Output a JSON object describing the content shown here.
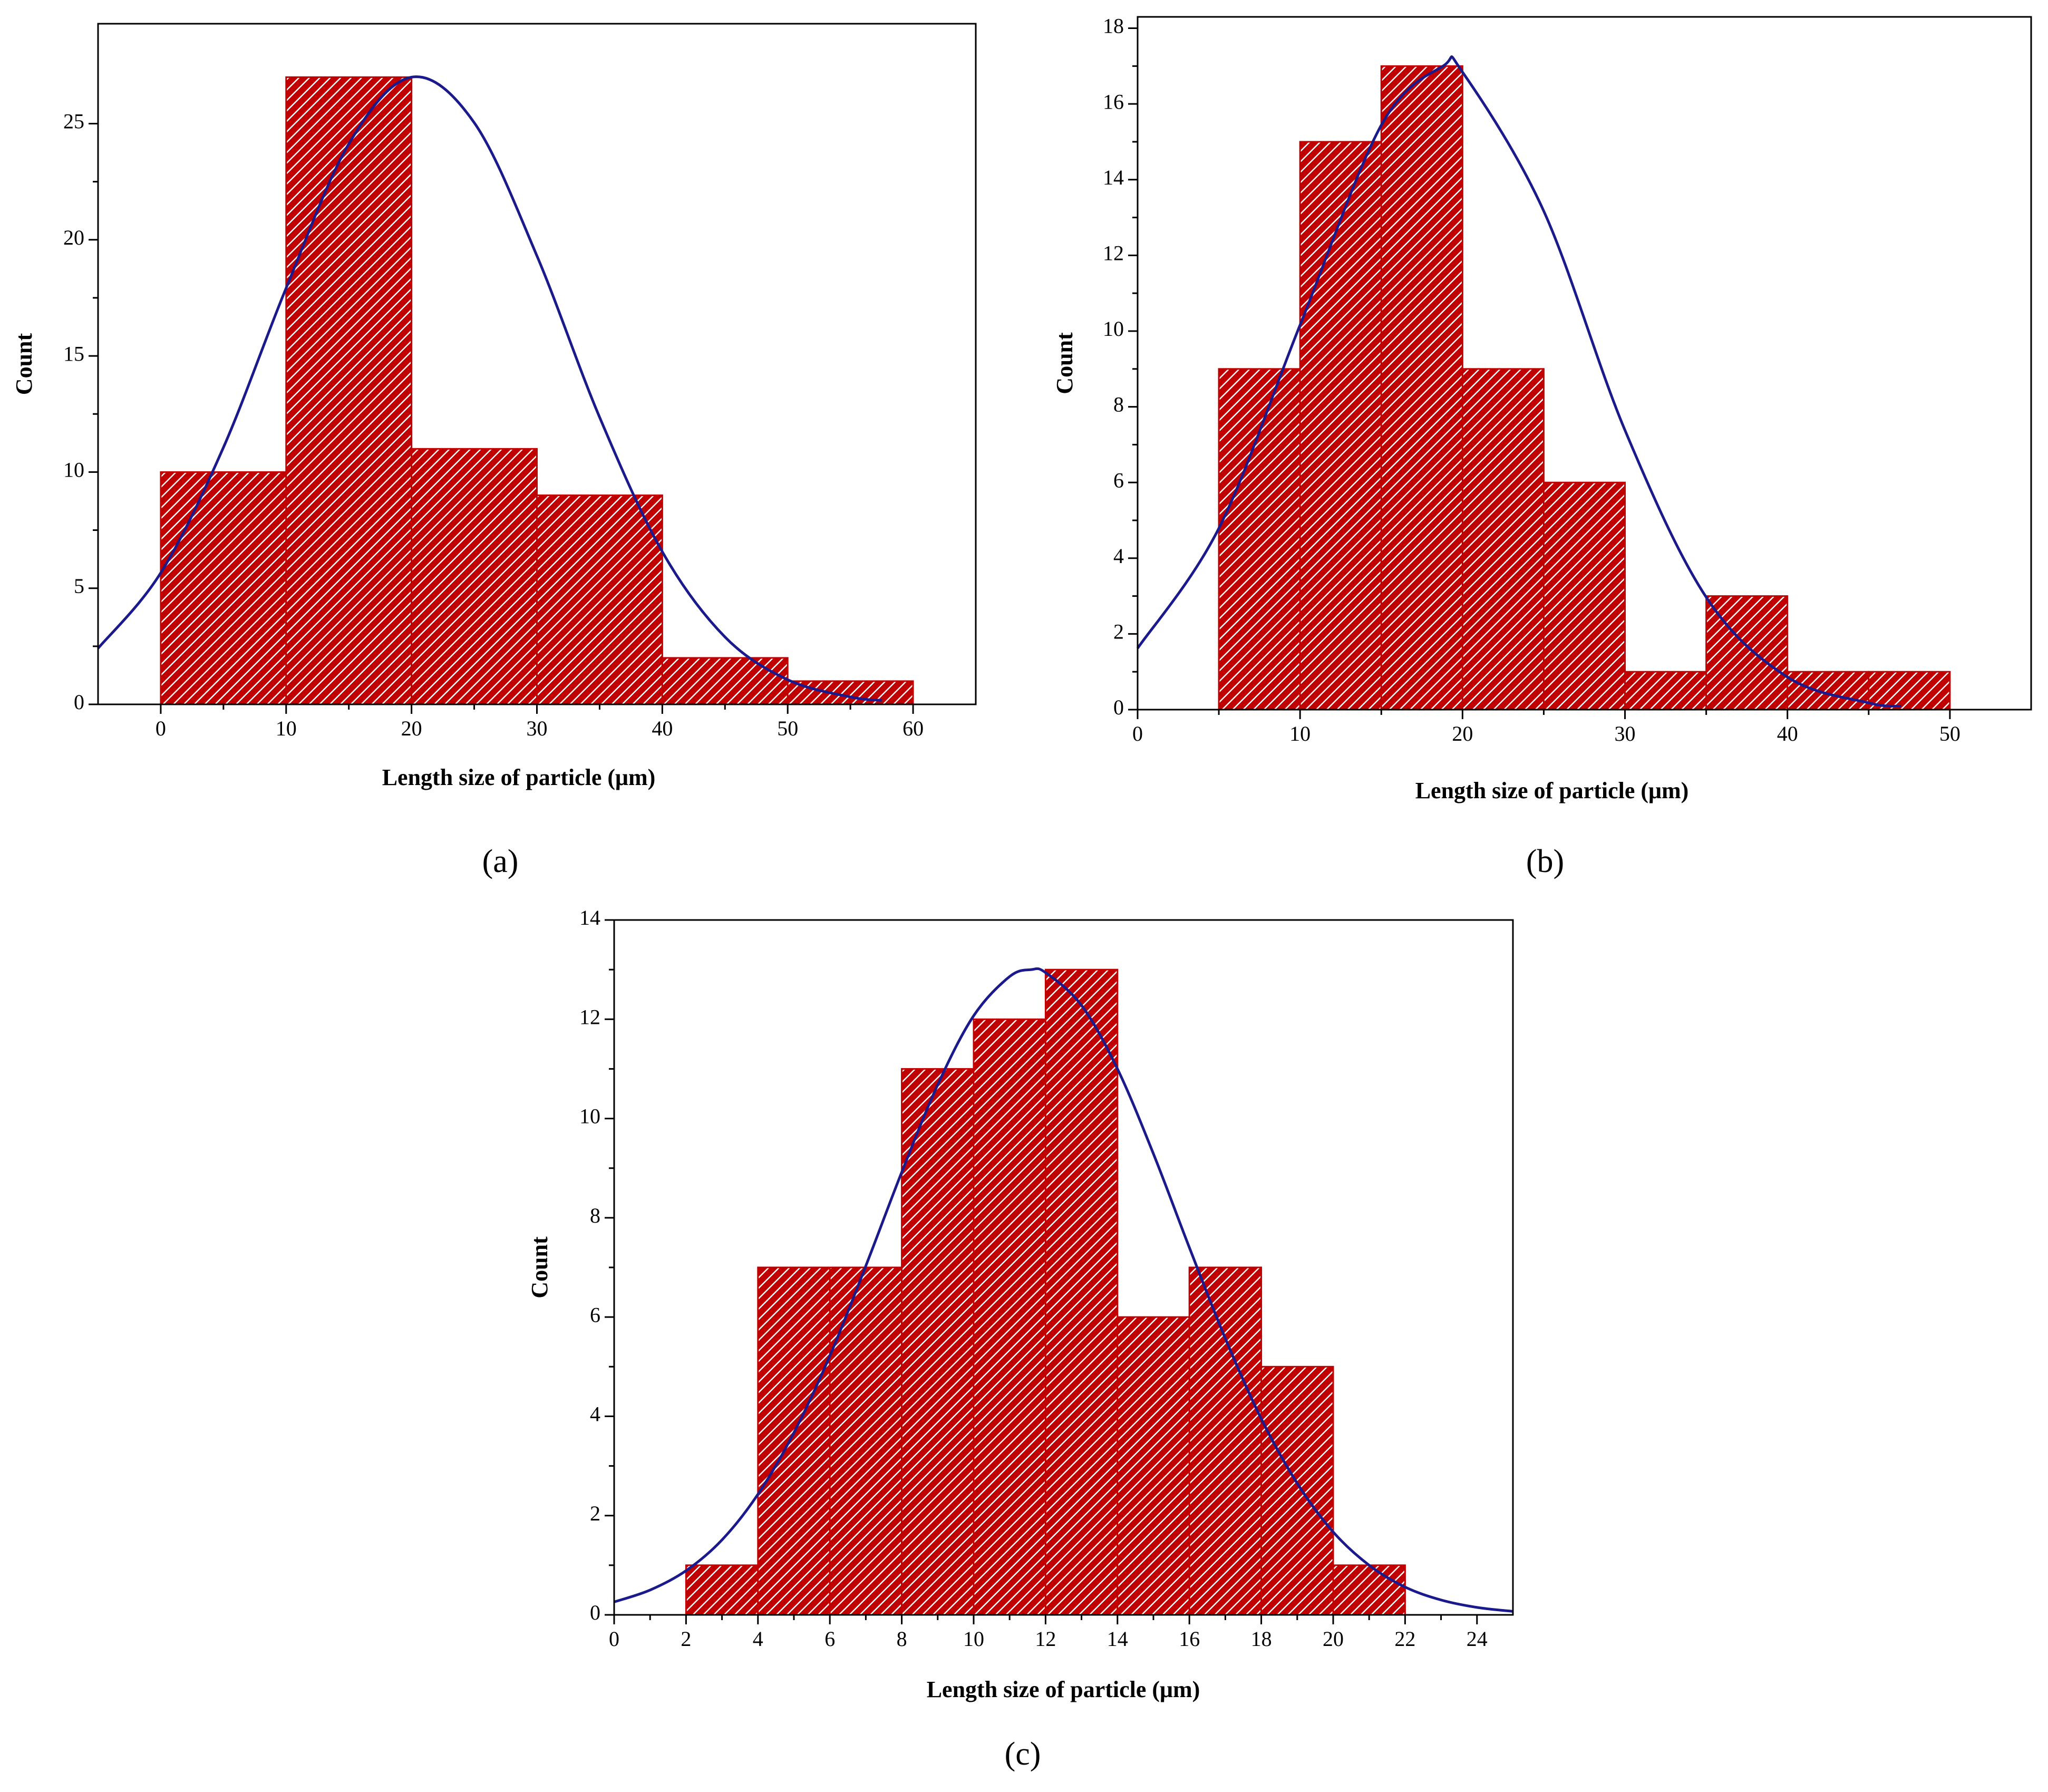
{
  "chart_data": [
    {
      "type": "histogram",
      "panel_label": "(a)",
      "xlabel": "Length size of particle (μm)",
      "ylabel": "Count",
      "bins": [
        0,
        10,
        20,
        30,
        40,
        50,
        60
      ],
      "values": [
        10,
        27,
        11,
        9,
        2,
        1
      ],
      "color": "#c00000",
      "curve": {
        "color": "#1a1a8c",
        "x": [
          -5,
          0,
          5,
          10,
          15,
          20,
          25,
          30,
          35,
          40,
          45,
          50,
          55,
          57.5
        ],
        "values": [
          2.41,
          5.66,
          11.06,
          17.92,
          24.13,
          27,
          25.04,
          19.31,
          12.36,
          6.57,
          2.9,
          1.06,
          0.32,
          0.17
        ]
      },
      "xlim": [
        -5,
        65
      ],
      "ylim": [
        0,
        29.3
      ],
      "xticks": [
        0,
        10,
        20,
        30,
        40,
        50,
        60
      ],
      "yticks": [
        0,
        5,
        10,
        15,
        20,
        25
      ]
    },
    {
      "type": "histogram",
      "panel_label": "(b)",
      "xlabel": "Length size of particle (μm)",
      "ylabel": "Count",
      "bins": [
        5,
        10,
        15,
        20,
        25,
        30,
        35,
        40,
        45,
        50
      ],
      "values": [
        9,
        15,
        17,
        9,
        6,
        1,
        3,
        1,
        1
      ],
      "color": "#c00000",
      "curve": {
        "color": "#1a1a8c",
        "x": [
          0,
          5,
          10,
          15,
          18.8,
          20,
          25,
          30,
          35,
          40,
          45,
          47
        ],
        "values": [
          1.62,
          4.79,
          10.16,
          15.44,
          17,
          16.84,
          13.17,
          7.38,
          2.97,
          0.86,
          0.18,
          0.09
        ]
      },
      "xlim": [
        0,
        55
      ],
      "ylim": [
        0,
        18.3
      ],
      "xticks": [
        0,
        10,
        20,
        30,
        40,
        50
      ],
      "yticks": [
        0,
        2,
        4,
        6,
        8,
        10,
        12,
        14,
        16,
        18
      ]
    },
    {
      "type": "histogram",
      "panel_label": "(c)",
      "xlabel": "Length size of particle (μm)",
      "ylabel": "Count",
      "bins": [
        2,
        4,
        6,
        8,
        10,
        12,
        14,
        16,
        18,
        20,
        22
      ],
      "values": [
        1,
        7,
        7,
        11,
        12,
        13,
        6,
        7,
        5,
        1
      ],
      "color": "#c00000",
      "curve": {
        "color": "#1a1a8c",
        "x": [
          0,
          1,
          2,
          3,
          4,
          5,
          6,
          7,
          8,
          9,
          10,
          11,
          11.6,
          12,
          13,
          14,
          15,
          16,
          17,
          18,
          19,
          20,
          21,
          22,
          23,
          24,
          25
        ],
        "values": [
          0.26,
          0.5,
          0.89,
          1.51,
          2.43,
          3.67,
          5.22,
          7.03,
          8.92,
          10.68,
          12.07,
          12.86,
          13,
          12.94,
          12.28,
          11,
          9.29,
          7.4,
          5.57,
          3.95,
          2.65,
          1.67,
          1,
          0.56,
          0.3,
          0.15,
          0.07
        ]
      },
      "xlim": [
        0,
        25
      ],
      "ylim": [
        0,
        14
      ],
      "xticks": [
        0,
        2,
        4,
        6,
        8,
        10,
        12,
        14,
        16,
        18,
        20,
        22,
        24
      ],
      "yticks": [
        0,
        2,
        4,
        6,
        8,
        10,
        12,
        14
      ]
    }
  ]
}
